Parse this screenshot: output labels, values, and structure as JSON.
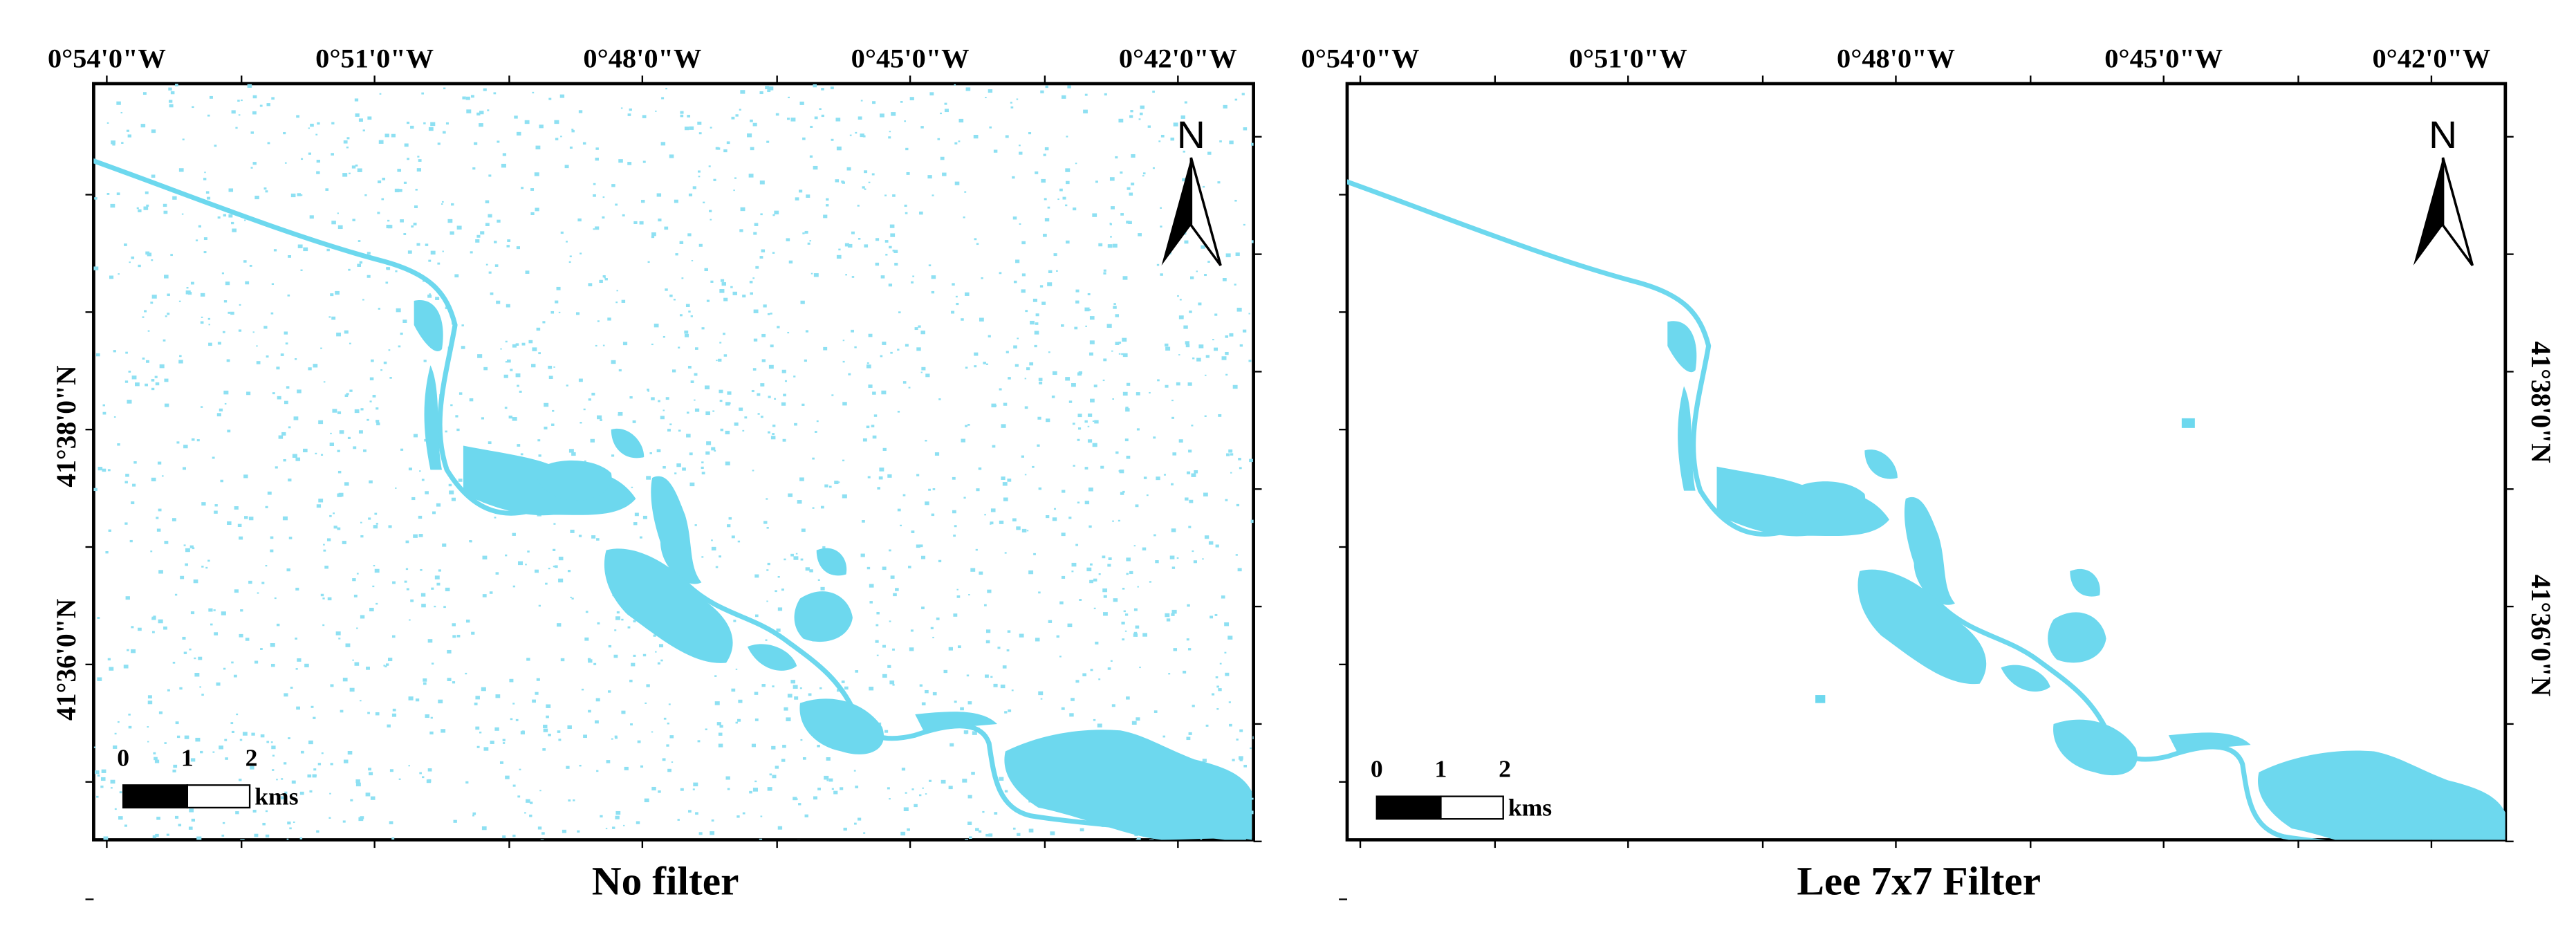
{
  "panels": [
    {
      "lon_labels": [
        "0°54'0\"W",
        "0°51'0\"W",
        "0°48'0\"W",
        "0°45'0\"W",
        "0°42'0\"W"
      ],
      "lat_labels": [
        "41°38'0\"N",
        "41°36'0\"N"
      ],
      "north": "N",
      "scale_labels": [
        "0",
        "1",
        "2"
      ],
      "scale_unit": "kms",
      "caption": "No filter"
    },
    {
      "lon_labels": [
        "0°54'0\"W",
        "0°51'0\"W",
        "0°48'0\"W",
        "0°45'0\"W",
        "0°42'0\"W"
      ],
      "lat_labels": [
        "41°38'0\"N",
        "41°36'0\"N"
      ],
      "north": "N",
      "scale_labels": [
        "0",
        "1",
        "2"
      ],
      "scale_unit": "kms",
      "caption": "Lee 7x7 Filter"
    }
  ]
}
